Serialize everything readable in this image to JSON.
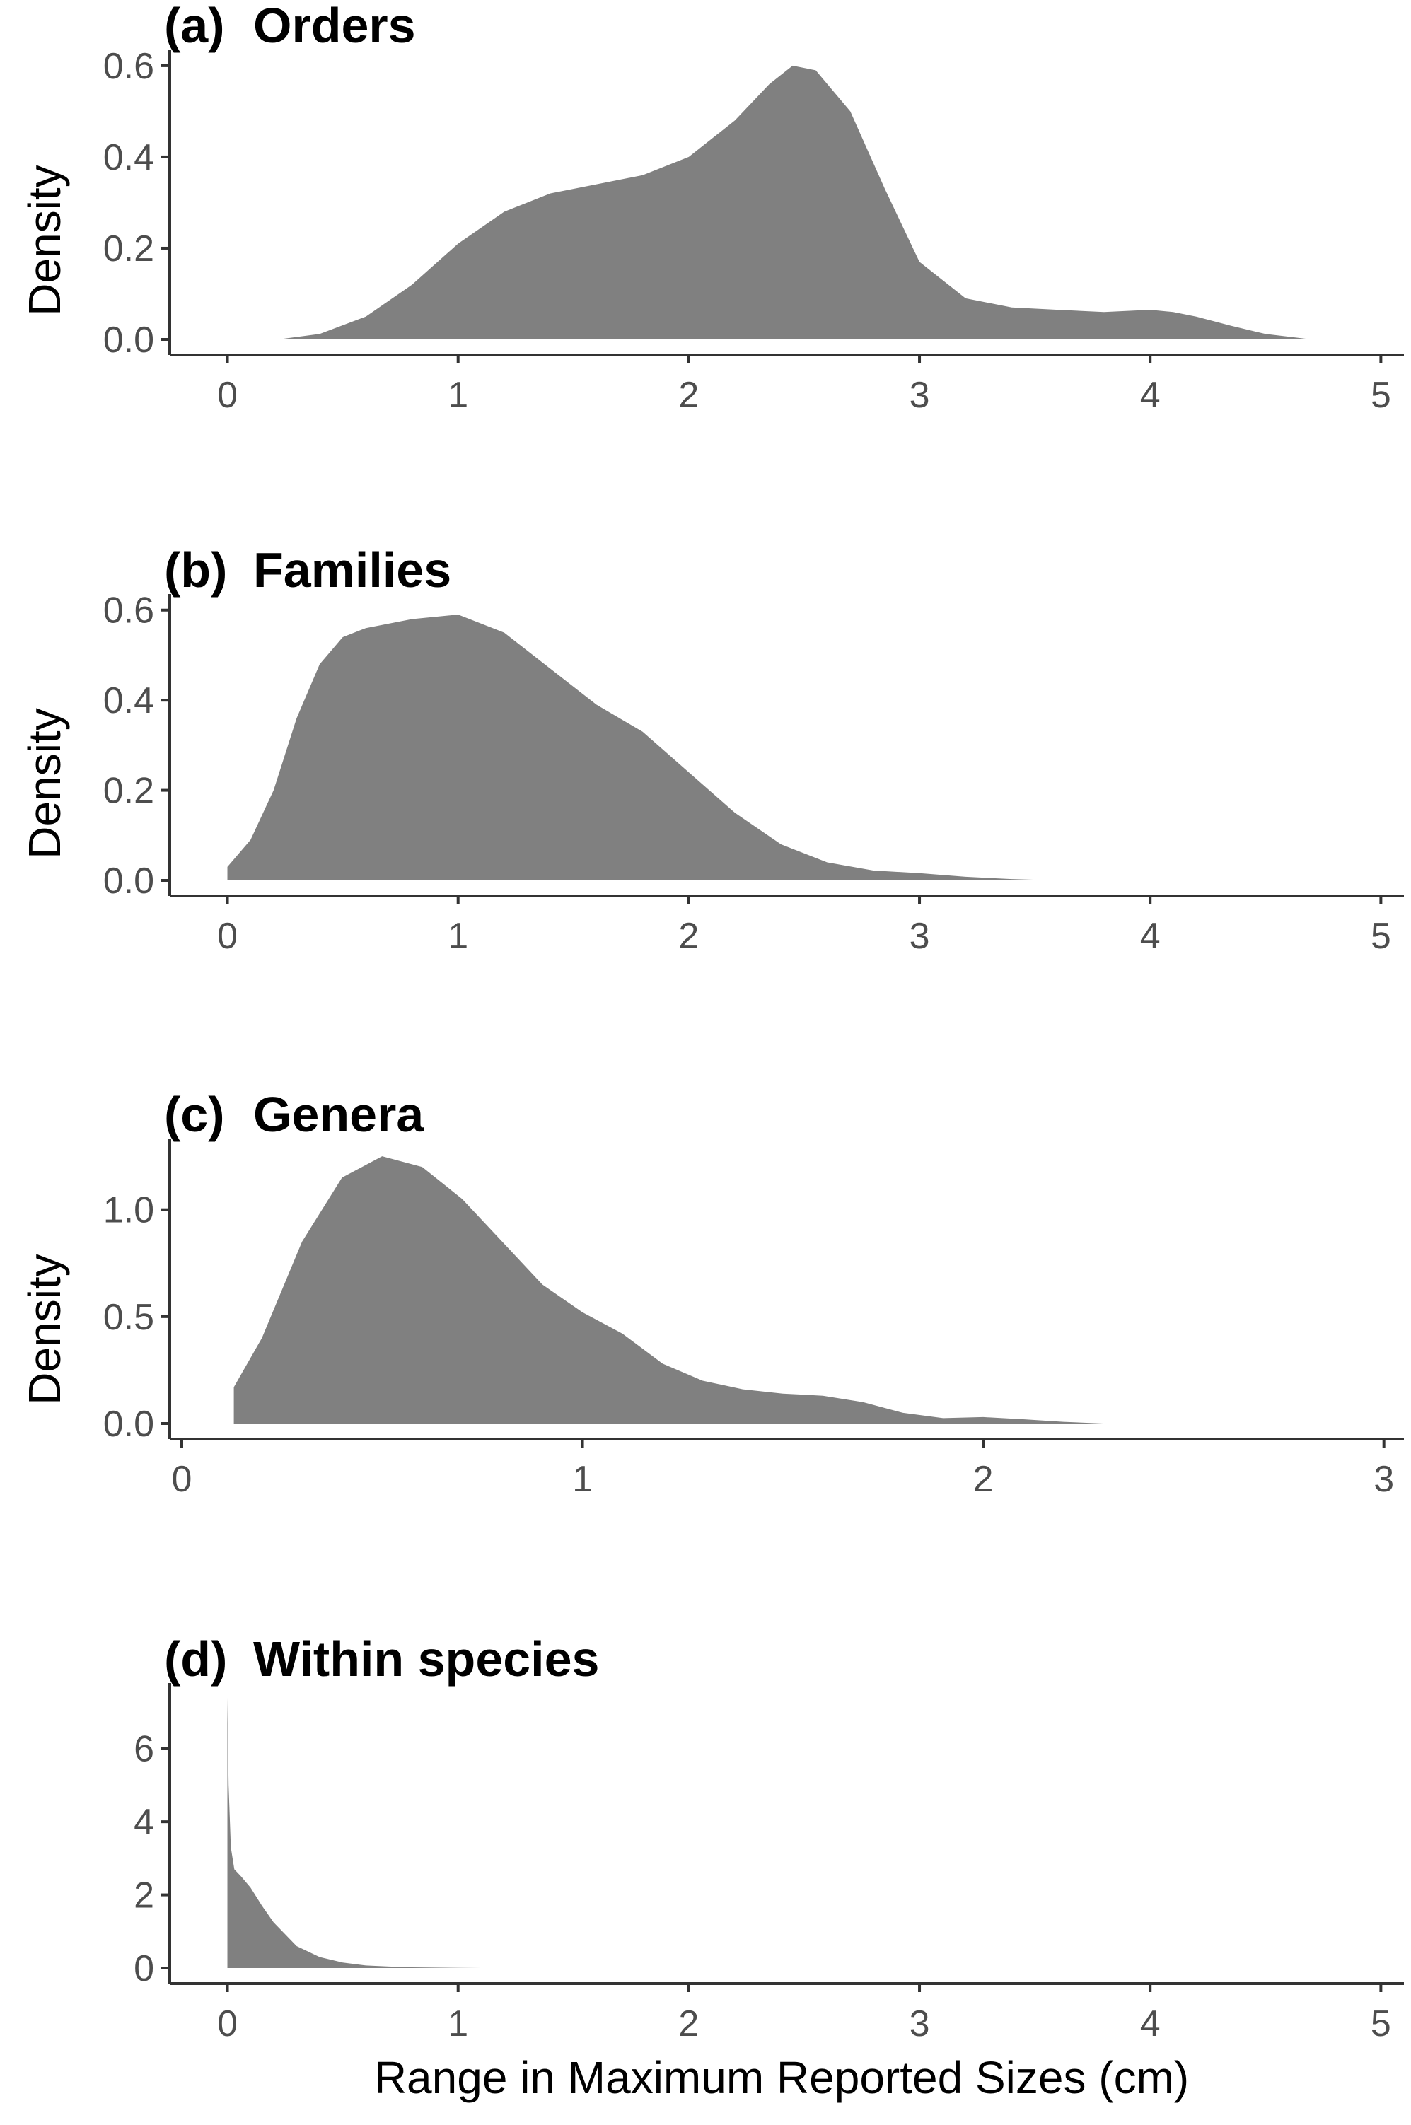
{
  "chart_data": [
    {
      "type": "area",
      "panel_label": "(a)",
      "title": "Orders",
      "ylabel": "Density",
      "xlabel": "",
      "xlim": [
        -0.25,
        5.1
      ],
      "ylim": [
        0,
        0.62
      ],
      "x_ticks": [
        0,
        1,
        2,
        3,
        4,
        5
      ],
      "y_ticks": [
        "0.0",
        "0.2",
        "0.4",
        "0.6"
      ],
      "y_tick_values": [
        0,
        0.2,
        0.4,
        0.6
      ],
      "fill_color": "#808080",
      "grid": false,
      "x": [
        0.22,
        0.4,
        0.6,
        0.8,
        1.0,
        1.2,
        1.4,
        1.6,
        1.8,
        2.0,
        2.2,
        2.35,
        2.45,
        2.55,
        2.7,
        2.85,
        3.0,
        3.2,
        3.4,
        3.6,
        3.8,
        4.0,
        4.1,
        4.2,
        4.35,
        4.5,
        4.7
      ],
      "y": [
        0.0,
        0.012,
        0.05,
        0.12,
        0.21,
        0.28,
        0.32,
        0.34,
        0.36,
        0.4,
        0.48,
        0.56,
        0.6,
        0.59,
        0.5,
        0.33,
        0.17,
        0.09,
        0.07,
        0.065,
        0.06,
        0.065,
        0.06,
        0.05,
        0.03,
        0.012,
        0.0
      ]
    },
    {
      "type": "area",
      "panel_label": "(b)",
      "title": "Families",
      "ylabel": "Density",
      "xlabel": "",
      "xlim": [
        -0.25,
        5.1
      ],
      "ylim": [
        0,
        0.62
      ],
      "x_ticks": [
        0,
        1,
        2,
        3,
        4,
        5
      ],
      "y_ticks": [
        "0.0",
        "0.2",
        "0.4",
        "0.6"
      ],
      "y_tick_values": [
        0,
        0.2,
        0.4,
        0.6
      ],
      "fill_color": "#808080",
      "grid": false,
      "x": [
        0.0,
        0.1,
        0.2,
        0.3,
        0.4,
        0.5,
        0.6,
        0.8,
        1.0,
        1.2,
        1.4,
        1.6,
        1.8,
        2.0,
        2.2,
        2.4,
        2.6,
        2.8,
        3.0,
        3.2,
        3.4,
        3.6
      ],
      "y": [
        0.03,
        0.09,
        0.2,
        0.36,
        0.48,
        0.54,
        0.56,
        0.58,
        0.59,
        0.55,
        0.47,
        0.39,
        0.33,
        0.24,
        0.15,
        0.08,
        0.04,
        0.022,
        0.016,
        0.008,
        0.003,
        0.0
      ]
    },
    {
      "type": "area",
      "panel_label": "(c)",
      "title": "Genera",
      "ylabel": "Density",
      "xlabel": "",
      "xlim": [
        -0.03,
        3.05
      ],
      "ylim": [
        0,
        1.3
      ],
      "x_ticks": [
        0,
        1,
        2,
        3
      ],
      "y_ticks": [
        "0.0",
        "0.5",
        "1.0"
      ],
      "y_tick_values": [
        0,
        0.5,
        1.0
      ],
      "fill_color": "#808080",
      "grid": false,
      "x": [
        0.13,
        0.2,
        0.3,
        0.4,
        0.5,
        0.6,
        0.7,
        0.8,
        0.9,
        1.0,
        1.1,
        1.2,
        1.3,
        1.4,
        1.5,
        1.6,
        1.7,
        1.8,
        1.9,
        2.0,
        2.1,
        2.2,
        2.3
      ],
      "y": [
        0.17,
        0.4,
        0.85,
        1.15,
        1.25,
        1.2,
        1.05,
        0.85,
        0.65,
        0.52,
        0.42,
        0.28,
        0.2,
        0.16,
        0.14,
        0.13,
        0.1,
        0.05,
        0.025,
        0.03,
        0.02,
        0.008,
        0.0
      ]
    },
    {
      "type": "area",
      "panel_label": "(d)",
      "title": "Within species",
      "ylabel": "",
      "xlabel": "Range in Maximum Reported Sizes (cm)",
      "xlim": [
        -0.25,
        5.1
      ],
      "ylim": [
        0,
        7.6
      ],
      "x_ticks": [
        0,
        1,
        2,
        3,
        4,
        5
      ],
      "y_ticks": [
        "0",
        "2",
        "4",
        "6"
      ],
      "y_tick_values": [
        0,
        2,
        4,
        6
      ],
      "fill_color": "#808080",
      "grid": false,
      "x": [
        0.0,
        0.005,
        0.015,
        0.03,
        0.06,
        0.1,
        0.15,
        0.2,
        0.3,
        0.4,
        0.5,
        0.6,
        0.7,
        0.8,
        1.0,
        1.1
      ],
      "y": [
        7.4,
        5.0,
        3.3,
        2.7,
        2.5,
        2.2,
        1.7,
        1.25,
        0.6,
        0.3,
        0.15,
        0.07,
        0.04,
        0.02,
        0.005,
        0.0
      ]
    }
  ]
}
